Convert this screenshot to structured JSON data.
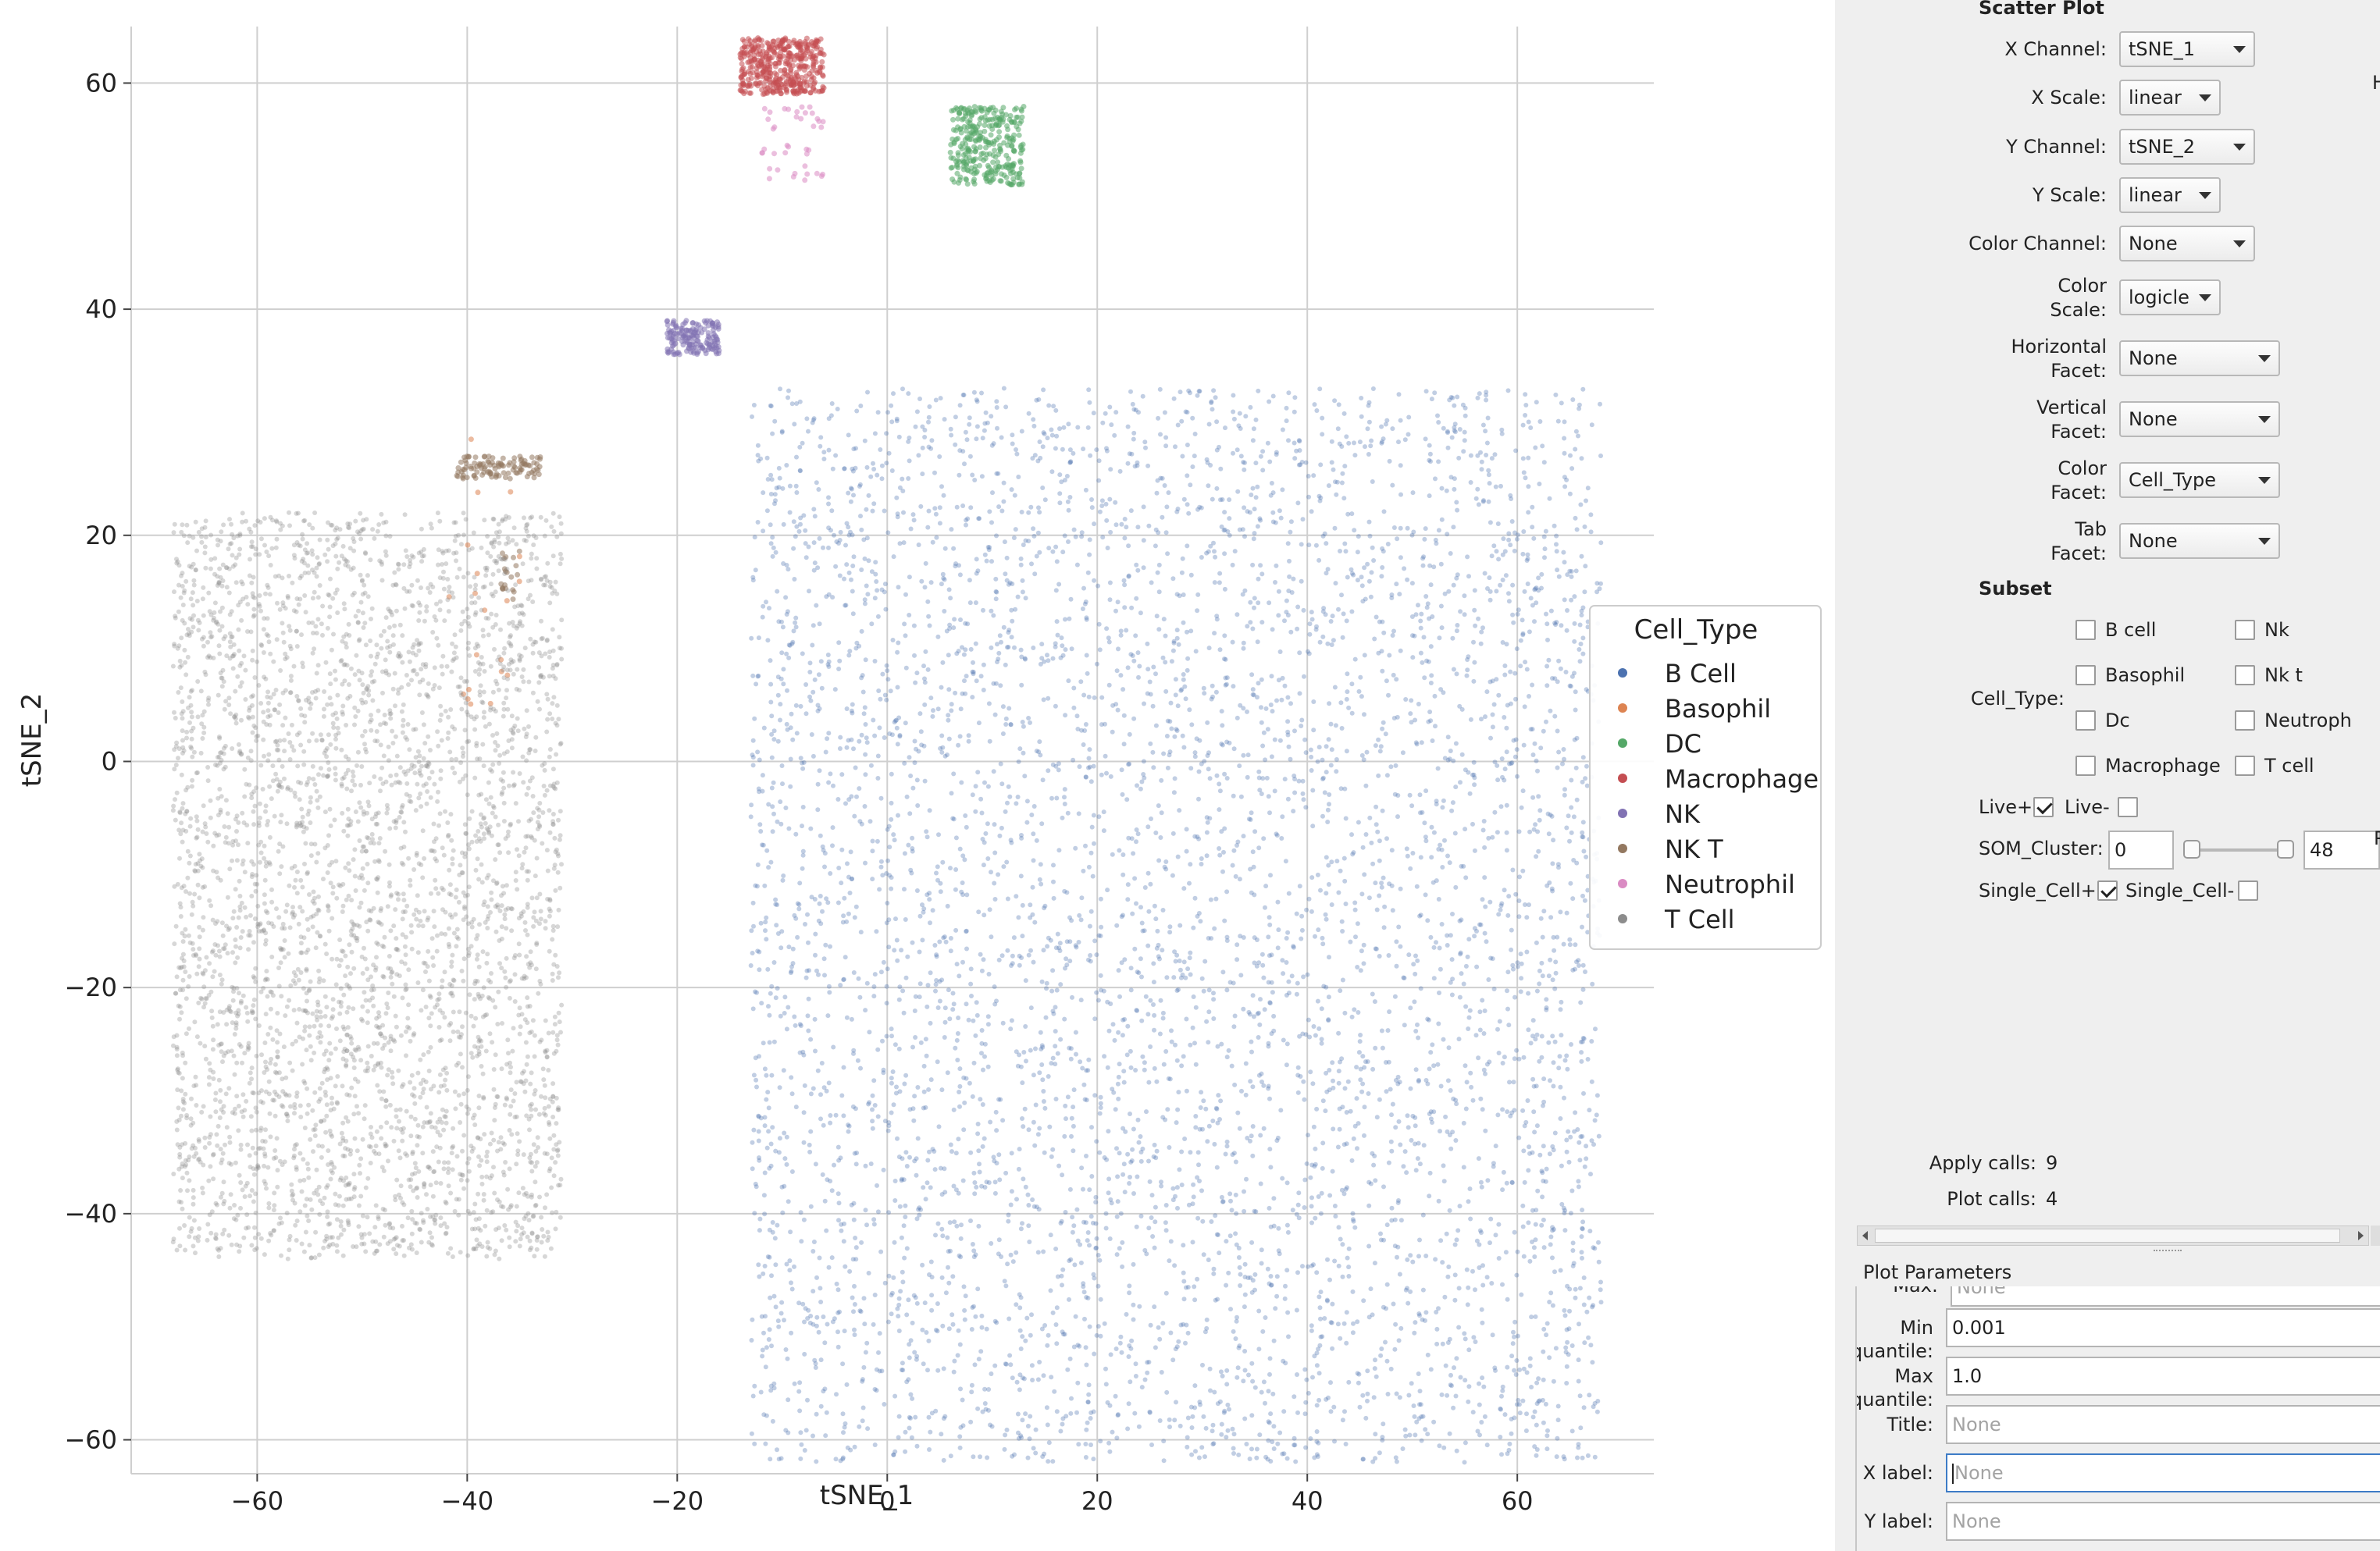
{
  "chart_data": {
    "type": "scatter",
    "xlabel": "tSNE_1",
    "ylabel": "tSNE_2",
    "xlim": [
      -72,
      73
    ],
    "ylim": [
      -63,
      65
    ],
    "xticks": [
      -60,
      -40,
      -20,
      0,
      20,
      40,
      60
    ],
    "yticks": [
      -60,
      -40,
      -20,
      0,
      20,
      40,
      60
    ],
    "grid": true,
    "legend_title": "Cell_Type",
    "legend_placement": "center-right",
    "series": [
      {
        "name": "B Cell",
        "color": "#4c72b0",
        "clusters": [
          {
            "x": [
              -13,
              68
            ],
            "y": [
              -62,
              33
            ],
            "n": 5200
          }
        ]
      },
      {
        "name": "Basophil",
        "color": "#dd8452",
        "clusters": [
          {
            "x": [
              -42,
              -35
            ],
            "y": [
              5,
              30
            ],
            "n": 20
          }
        ]
      },
      {
        "name": "DC",
        "color": "#55a868",
        "clusters": [
          {
            "x": [
              6,
              13
            ],
            "y": [
              51,
              58
            ],
            "n": 320
          }
        ]
      },
      {
        "name": "Macrophage",
        "color": "#c44e52",
        "clusters": [
          {
            "x": [
              -14,
              -6
            ],
            "y": [
              59,
              64
            ],
            "n": 420
          }
        ]
      },
      {
        "name": "NK",
        "color": "#8172b3",
        "clusters": [
          {
            "x": [
              -21,
              -16
            ],
            "y": [
              36,
              39
            ],
            "n": 160
          }
        ]
      },
      {
        "name": "NK T",
        "color": "#937860",
        "clusters": [
          {
            "x": [
              -41,
              -33
            ],
            "y": [
              25,
              27
            ],
            "n": 110
          },
          {
            "x": [
              -37,
              -35
            ],
            "y": [
              14,
              19
            ],
            "n": 20
          }
        ]
      },
      {
        "name": "Neutrophil",
        "color": "#da8bc3",
        "clusters": [
          {
            "x": [
              -12,
              -6
            ],
            "y": [
              51,
              58
            ],
            "n": 40
          }
        ]
      },
      {
        "name": "T Cell",
        "color": "#8c8c8c",
        "clusters": [
          {
            "x": [
              -68,
              -31
            ],
            "y": [
              -44,
              22
            ],
            "n": 3800
          }
        ]
      }
    ]
  },
  "panel": {
    "section_title": "Scatter Plot",
    "x_channel": {
      "label": "X Channel:",
      "value": "tSNE_1"
    },
    "x_scale": {
      "label": "X Scale:",
      "value": "linear"
    },
    "y_channel": {
      "label": "Y Channel:",
      "value": "tSNE_2"
    },
    "y_scale": {
      "label": "Y Scale:",
      "value": "linear"
    },
    "color_channel": {
      "label": "Color Channel:",
      "value": "None"
    },
    "color_scale": {
      "label1": "Color",
      "label2": "Scale:",
      "value": "logicle"
    },
    "h_facet": {
      "label1": "Horizontal",
      "label2": "Facet:",
      "value": "None"
    },
    "v_facet": {
      "label1": "Vertical",
      "label2": "Facet:",
      "value": "None"
    },
    "color_facet": {
      "label1": "Color",
      "label2": "Facet:",
      "value": "Cell_Type"
    },
    "tab_facet": {
      "label1": "Tab",
      "label2": "Facet:",
      "value": "None"
    },
    "subset_title": "Subset",
    "cell_type_label": "Cell_Type:",
    "cell_types": [
      "B cell",
      "Nk",
      "Basophil",
      "Nk t",
      "Dc",
      "Neutroph",
      "Macrophage",
      "T cell"
    ],
    "live_plus": "Live+",
    "live_minus": "Live-",
    "som_label": "SOM_Cluster:",
    "som_min": "0",
    "som_max": "48",
    "single_plus": "Single_Cell+",
    "single_minus": "Single_Cell-",
    "apply_calls_label": "Apply calls:",
    "apply_calls": "9",
    "plot_calls_label": "Plot calls:",
    "plot_calls": "4",
    "plot_params_title": "Plot Parameters",
    "max_label": "Max:",
    "max_placeholder": "None",
    "min_quantile": {
      "label": "Min quantile:",
      "value": "0.001"
    },
    "max_quantile": {
      "label": "Max quantile:",
      "value": "1.0"
    },
    "title": {
      "label": "Title:",
      "placeholder": "None"
    },
    "x_label": {
      "label": "X label:",
      "placeholder": "None"
    },
    "y_label": {
      "label": "Y label:",
      "placeholder": "None"
    },
    "edge_glyph_h": "H",
    "edge_glyph_p": "P"
  }
}
